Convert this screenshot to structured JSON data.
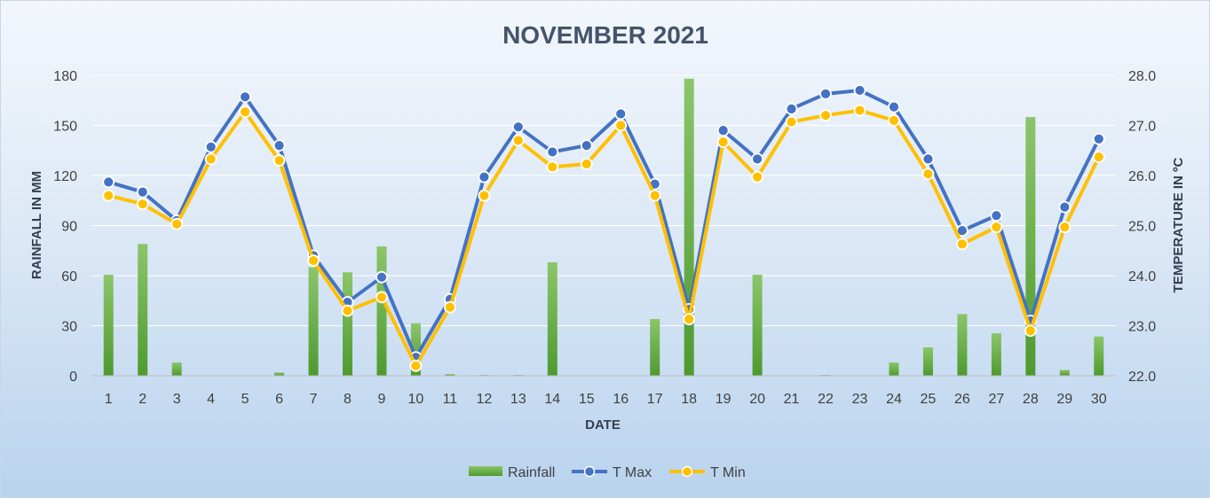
{
  "chart_data": {
    "type": "bar+line",
    "title": "NOVEMBER 2021",
    "xlabel": "DATE",
    "ylabel_left": "RAINFALL IN MM",
    "ylabel_right": "TEMPERATURE IN ºC",
    "categories": [
      "1",
      "2",
      "3",
      "4",
      "5",
      "6",
      "7",
      "8",
      "9",
      "10",
      "11",
      "12",
      "13",
      "14",
      "15",
      "16",
      "17",
      "18",
      "19",
      "20",
      "21",
      "22",
      "23",
      "24",
      "25",
      "26",
      "27",
      "28",
      "29",
      "30"
    ],
    "y_left": {
      "min": 0,
      "max": 180,
      "ticks": [
        "0",
        "30",
        "60",
        "90",
        "120",
        "150",
        "180"
      ]
    },
    "y_right": {
      "min": 22.0,
      "max": 28.0,
      "ticks": [
        "22.0",
        "23.0",
        "24.0",
        "25.0",
        "26.0",
        "27.0",
        "28.0"
      ]
    },
    "grid": true,
    "legend_position": "bottom",
    "series": [
      {
        "name": "Rainfall",
        "type": "bar",
        "axis": "left",
        "color": "#70ad47",
        "values": [
          60.5,
          79,
          8,
          0,
          0,
          2,
          65,
          62,
          77.5,
          31.5,
          1,
          0.5,
          0.5,
          68,
          0,
          0,
          34,
          178,
          0,
          60.5,
          0,
          0.5,
          0,
          8,
          17,
          37,
          25.5,
          155,
          3.5,
          23.5
        ]
      },
      {
        "name": "T Max",
        "type": "line",
        "axis": "right",
        "color": "#4472c4",
        "values": [
          25.87,
          25.67,
          25.1,
          26.57,
          27.57,
          26.6,
          24.4,
          23.47,
          23.97,
          22.37,
          23.53,
          25.97,
          26.97,
          26.47,
          26.6,
          27.23,
          25.83,
          23.33,
          26.9,
          26.33,
          27.33,
          27.63,
          27.7,
          27.37,
          26.33,
          24.9,
          25.2,
          23.1,
          25.37,
          26.73
        ]
      },
      {
        "name": "T Min",
        "type": "line",
        "axis": "right",
        "color": "#ffc000",
        "values": [
          25.6,
          25.43,
          25.03,
          26.33,
          27.27,
          26.3,
          24.3,
          23.3,
          23.57,
          22.2,
          23.37,
          25.6,
          26.7,
          26.17,
          26.23,
          27.0,
          25.6,
          23.13,
          26.67,
          25.97,
          27.07,
          27.2,
          27.3,
          27.1,
          26.03,
          24.63,
          24.97,
          22.9,
          24.97,
          26.37
        ]
      }
    ]
  }
}
